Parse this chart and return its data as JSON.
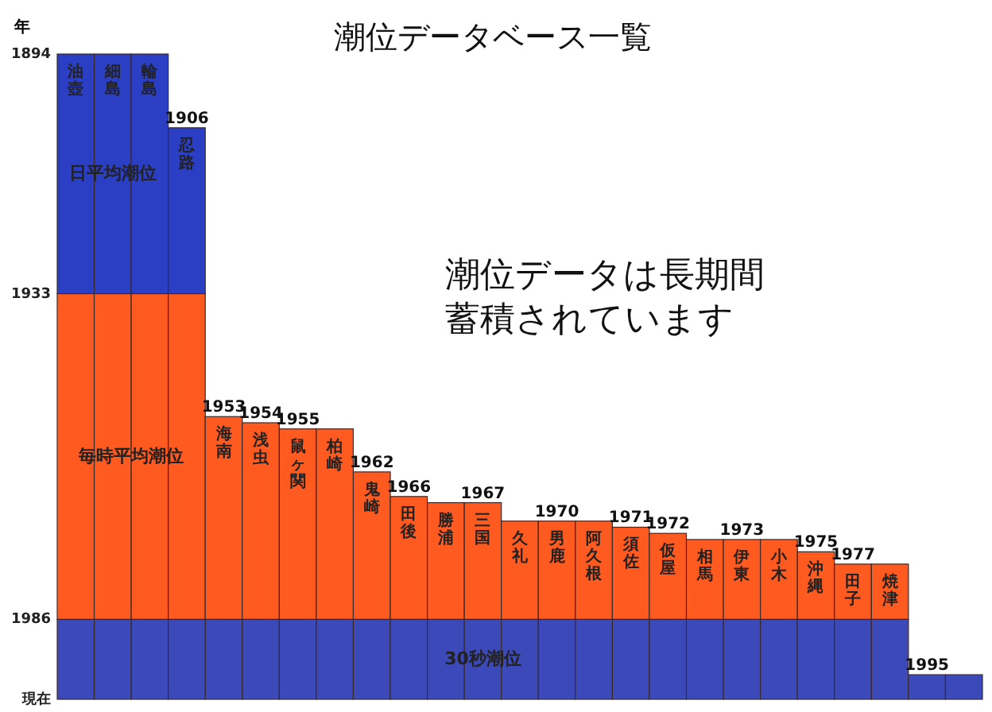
{
  "chart_data": {
    "type": "bar",
    "title": "潮位データベース一覧",
    "ylabel": "年",
    "categories": [
      "油壺",
      "細島",
      "輪島",
      "忍路",
      "海南",
      "浅虫",
      "鼠ヶ関",
      "柏崎",
      "鬼崎",
      "田後",
      "勝浦",
      "三国",
      "久礼",
      "男鹿",
      "阿久根",
      "須佐",
      "仮屋",
      "相馬",
      "伊東",
      "小木",
      "沖縄",
      "田子",
      "焼津",
      null,
      null
    ],
    "series": [
      {
        "name": "日平均潮位",
        "color": "#2b3fc4",
        "base": [
          1894,
          1894,
          1894,
          1906,
          null,
          null,
          null,
          null,
          null,
          null,
          null,
          null,
          null,
          null,
          null,
          null,
          null,
          null,
          null,
          null,
          null,
          null,
          null,
          null,
          null
        ],
        "values": [
          39,
          39,
          39,
          27,
          null,
          null,
          null,
          null,
          null,
          null,
          null,
          null,
          null,
          null,
          null,
          null,
          null,
          null,
          null,
          null,
          null,
          null,
          null,
          null,
          null
        ]
      },
      {
        "name": "毎時平均潮位",
        "color": "#ff5a1f",
        "base": [
          1933,
          1933,
          1933,
          1933,
          1953,
          1954,
          1955,
          1955,
          1962,
          1966,
          1967,
          1967,
          1970,
          1970,
          1970,
          1971,
          1972,
          1973,
          1973,
          1973,
          1975,
          1977,
          1977,
          null,
          null
        ],
        "values": [
          53,
          53,
          53,
          53,
          33,
          32,
          31,
          31,
          24,
          20,
          19,
          19,
          16,
          16,
          16,
          15,
          14,
          13,
          13,
          13,
          11,
          9,
          9,
          null,
          null
        ]
      },
      {
        "name": "30秒潮位",
        "color": "#3b4ab8",
        "base": [
          1986,
          1986,
          1986,
          1986,
          1986,
          1986,
          1986,
          1986,
          1986,
          1986,
          1986,
          1986,
          1986,
          1986,
          1986,
          1986,
          1986,
          1986,
          1986,
          1986,
          1986,
          1986,
          1986,
          1995,
          1995
        ],
        "values": [
          13,
          13,
          13,
          13,
          13,
          13,
          13,
          13,
          13,
          13,
          13,
          13,
          13,
          13,
          13,
          13,
          13,
          13,
          13,
          13,
          13,
          13,
          13,
          4,
          4
        ]
      }
    ],
    "ylim": [
      1999,
      1894
    ],
    "yticks": [
      1894,
      1933,
      1986,
      {
        "value": 1999,
        "label": "現在"
      }
    ],
    "annotations": [
      "潮位データは長期間",
      "蓄積されています",
      {
        "text": "1906",
        "x": "忍路",
        "y": 1906
      },
      {
        "text": "1953",
        "x": "海南",
        "y": 1953
      },
      {
        "text": "1954",
        "x": "浅虫",
        "y": 1954
      },
      {
        "text": "1955",
        "x": "鼠ヶ関",
        "y": 1955
      },
      {
        "text": "1962",
        "x": "鬼崎",
        "y": 1962
      },
      {
        "text": "1966",
        "x": "田後",
        "y": 1966
      },
      {
        "text": "1967",
        "x": "三国",
        "y": 1967
      },
      {
        "text": "1970",
        "x": "男鹿",
        "y": 1970
      },
      {
        "text": "1971",
        "x": "須佐",
        "y": 1971
      },
      {
        "text": "1972",
        "x": "仮屋",
        "y": 1972
      },
      {
        "text": "1973",
        "x": "伊東",
        "y": 1973
      },
      {
        "text": "1975",
        "x": "沖縄",
        "y": 1975
      },
      {
        "text": "1977",
        "x": "田子",
        "y": 1977
      },
      {
        "text": "1995",
        "y": 1995
      }
    ]
  }
}
